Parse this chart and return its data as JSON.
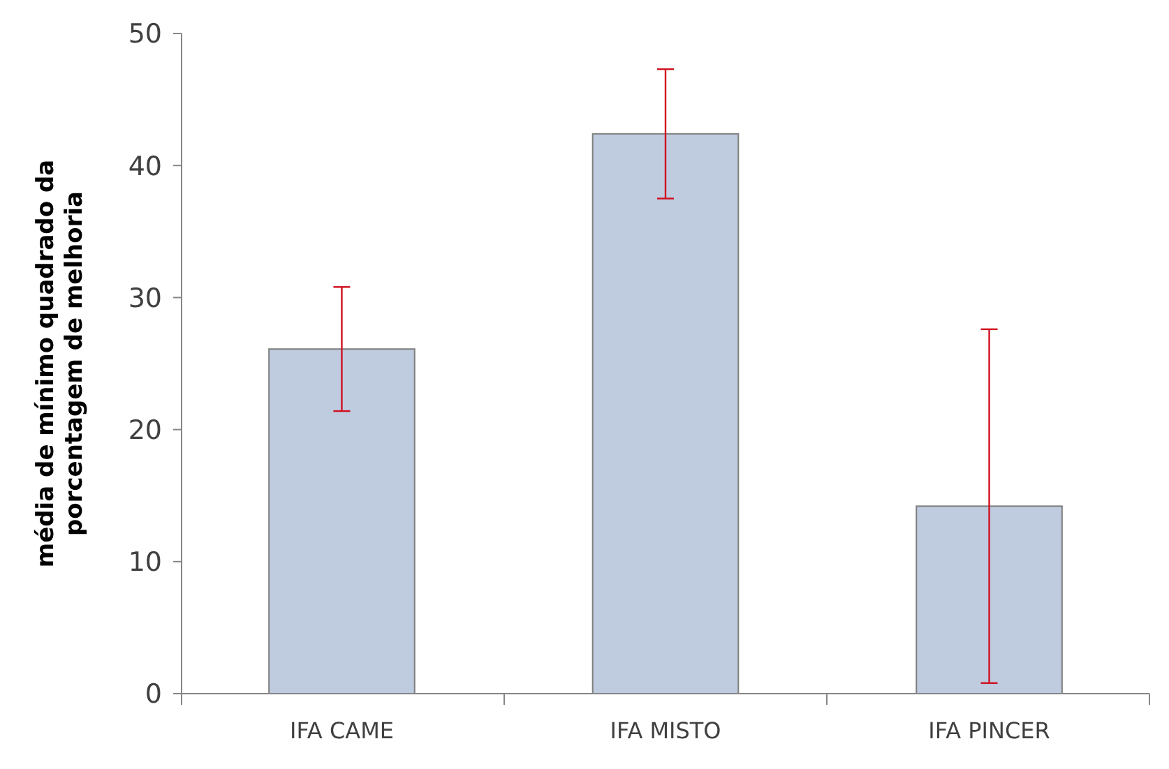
{
  "chart_data": {
    "type": "bar",
    "ylabel": "média de mínimo quadrado da\nporcentagem de melhoria",
    "categories": [
      "IFA CAME",
      "IFA MISTO",
      "IFA PINCER"
    ],
    "values": [
      26.1,
      42.4,
      14.2
    ],
    "errors": [
      4.7,
      4.9,
      13.4
    ],
    "color": "#bfcbdf",
    "ylim": [
      0,
      50
    ],
    "yticks": [
      0,
      10,
      20,
      30,
      40,
      50
    ],
    "grid": false
  }
}
